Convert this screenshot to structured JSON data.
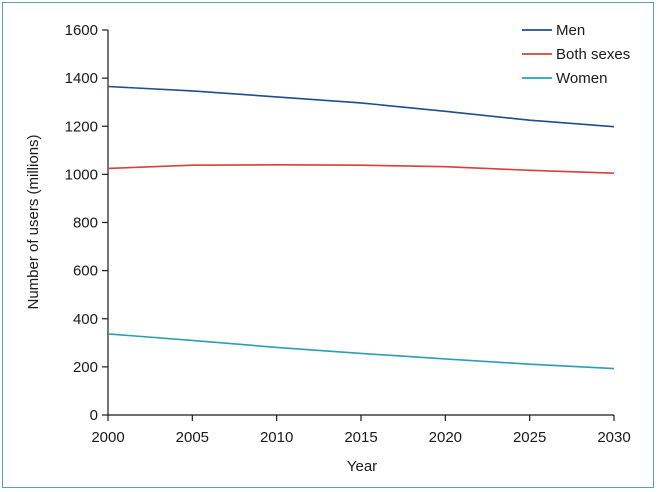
{
  "chart_data": {
    "type": "line",
    "title": "",
    "xlabel": "Year",
    "ylabel": "Number of users (millions)",
    "xlim": [
      2000,
      2030
    ],
    "ylim": [
      0,
      1600
    ],
    "x_ticks": [
      2000,
      2005,
      2010,
      2015,
      2020,
      2025,
      2030
    ],
    "y_ticks": [
      0,
      200,
      400,
      600,
      800,
      1000,
      1200,
      1400,
      1600
    ],
    "grid": false,
    "legend_position": "top-right",
    "series": [
      {
        "name": "Men",
        "color": "#1f4e8c",
        "x": [
          2000,
          2005,
          2010,
          2015,
          2020,
          2025,
          2030
        ],
        "values": [
          1365,
          1347,
          1322,
          1297,
          1262,
          1225,
          1198
        ]
      },
      {
        "name": "Both sexes",
        "color": "#d9403a",
        "x": [
          2000,
          2005,
          2010,
          2015,
          2020,
          2025,
          2030
        ],
        "values": [
          1025,
          1038,
          1040,
          1038,
          1032,
          1017,
          1005
        ]
      },
      {
        "name": "Women",
        "color": "#2aa0b4",
        "x": [
          2000,
          2005,
          2010,
          2015,
          2020,
          2025,
          2030
        ],
        "values": [
          337,
          310,
          281,
          256,
          233,
          211,
          193
        ]
      }
    ]
  }
}
